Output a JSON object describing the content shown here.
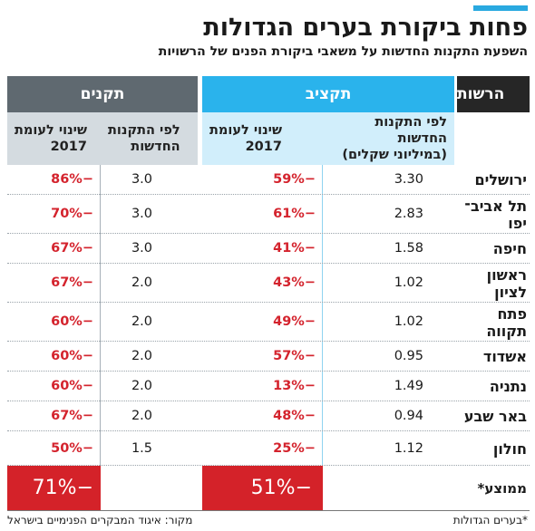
{
  "title": "פחות ביקורת בערים הגדולות",
  "subtitle": "השפעת התקנות החדשות על משאבי ביקורת הפנים של הרשויות",
  "colors": {
    "accent": "#29a9e0",
    "budget_header": "#2ab3ec",
    "standards_header": "#5f6970",
    "muni_header": "#262626",
    "negative": "#d4232d",
    "average_bg": "#d42229"
  },
  "headers": {
    "municipality": "הרשות",
    "budget": "תקציב",
    "standards": "תקנים",
    "budget_new": "לפי התקנות החדשות\n(במיליוני שקלים)",
    "budget_change": "שינוי לעומת\n2017",
    "standards_new": "לפי התקנות\nהחדשות",
    "standards_change": "שינוי לעומת\n2017"
  },
  "chart_data": {
    "type": "table",
    "title": "פחות ביקורת בערים הגדולות",
    "subtitle": "השפעת התקנות החדשות על משאבי ביקורת הפנים של הרשויות",
    "columns": [
      "הרשות",
      "תקציב - לפי התקנות החדשות (במיליוני שקלים)",
      "תקציב - שינוי לעומת 2017",
      "תקנים - לפי התקנות החדשות",
      "תקנים - שינוי לעומת 2017"
    ],
    "rows": [
      {
        "name": "ירושלים",
        "budget_new": "3.30",
        "budget_change": "−59%",
        "standards_new": "3.0",
        "standards_change": "−86%"
      },
      {
        "name": "תל אביב־\nיפו",
        "budget_new": "2.83",
        "budget_change": "−61%",
        "standards_new": "3.0",
        "standards_change": "−70%"
      },
      {
        "name": "חיפה",
        "budget_new": "1.58",
        "budget_change": "−41%",
        "standards_new": "3.0",
        "standards_change": "−67%"
      },
      {
        "name": "ראשון\nלציון",
        "budget_new": "1.02",
        "budget_change": "−43%",
        "standards_new": "2.0",
        "standards_change": "−67%"
      },
      {
        "name": "פתח\nתקווה",
        "budget_new": "1.02",
        "budget_change": "−49%",
        "standards_new": "2.0",
        "standards_change": "−60%"
      },
      {
        "name": "אשדוד",
        "budget_new": "0.95",
        "budget_change": "−57%",
        "standards_new": "2.0",
        "standards_change": "−60%"
      },
      {
        "name": "נתניה",
        "budget_new": "1.49",
        "budget_change": "−13%",
        "standards_new": "2.0",
        "standards_change": "−60%"
      },
      {
        "name": "באר שבע",
        "budget_new": "0.94",
        "budget_change": "−48%",
        "standards_new": "2.0",
        "standards_change": "−67%"
      },
      {
        "name": "חולון",
        "budget_new": "1.12",
        "budget_change": "−25%",
        "standards_new": "1.5",
        "standards_change": "−50%"
      }
    ],
    "average": {
      "label": "ממוצע*",
      "budget_change": "−51%",
      "standards_change": "−71%"
    }
  },
  "footnote": "*בערים הגדולות",
  "source": "מקור: איגוד המבקרים הפנימיים בישראל"
}
